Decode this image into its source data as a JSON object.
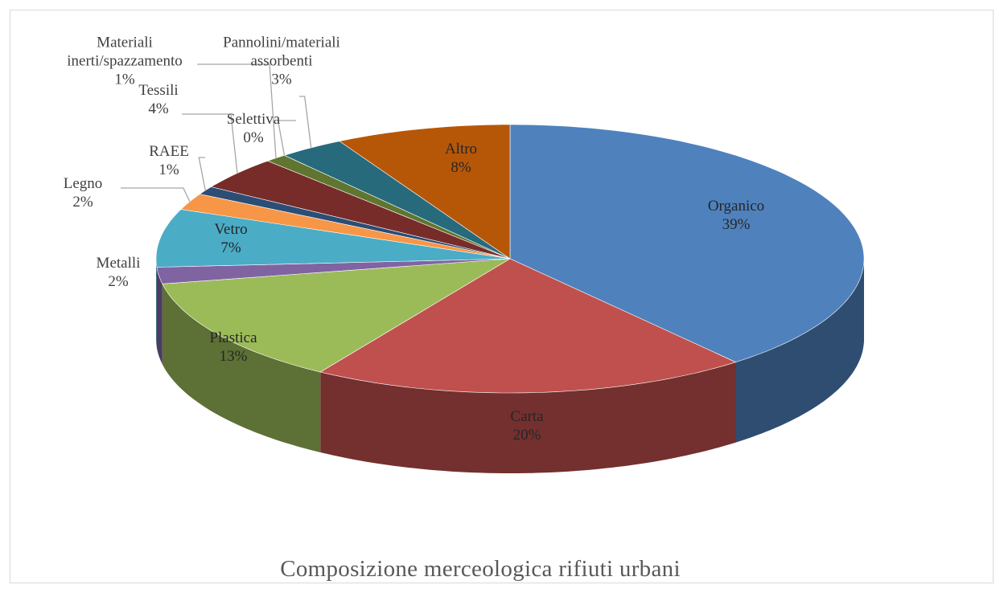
{
  "chart_data": {
    "type": "pie3d",
    "title": "Composizione merceologica rifiuti urbani",
    "categories": [
      "Organico",
      "Carta",
      "Plastica",
      "Metalli",
      "Vetro",
      "Legno",
      "RAEE",
      "Tessili",
      "Materiali inerti/spazzamento",
      "Selettiva",
      "Pannolini/materiali assorbenti",
      "Altro"
    ],
    "values": [
      39,
      20,
      13,
      2,
      7,
      2,
      1,
      4,
      1,
      0,
      3,
      8
    ],
    "value_labels": [
      "39%",
      "20%",
      "13%",
      "2%",
      "7%",
      "2%",
      "1%",
      "4%",
      "1%",
      "0%",
      "3%",
      "8%"
    ],
    "colors": [
      "#4f81bd",
      "#c0504d",
      "#9bbb59",
      "#8064a2",
      "#4bacc6",
      "#f79646",
      "#2c4d75",
      "#772c2a",
      "#5f7530",
      "#4d3b62",
      "#276a7c",
      "#b65708"
    ]
  }
}
